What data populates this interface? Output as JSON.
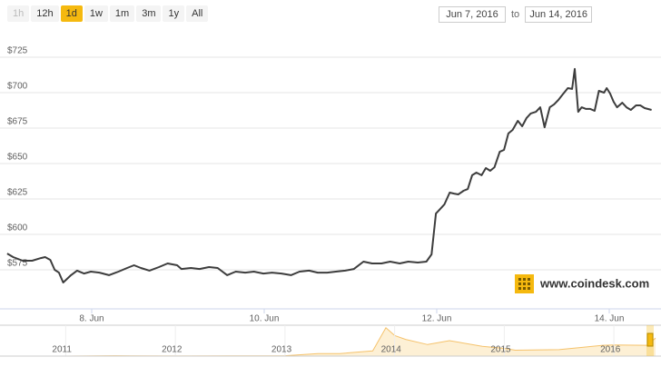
{
  "range_selector": {
    "buttons": [
      "1h",
      "12h",
      "1d",
      "1w",
      "1m",
      "3m",
      "1y",
      "All"
    ],
    "selected": 2,
    "disabled": [
      0
    ],
    "from": "Jun 7, 2016",
    "separator": "to",
    "to": "Jun 14, 2016"
  },
  "watermark": "www.coindesk.com",
  "chart_data": [
    {
      "type": "line",
      "color": "#3d3d3d",
      "x": [
        7.02,
        7.09,
        7.2,
        7.31,
        7.41,
        7.46,
        7.52,
        7.57,
        7.62,
        7.67,
        7.76,
        7.83,
        7.91,
        7.99,
        8.09,
        8.2,
        8.31,
        8.41,
        8.49,
        8.57,
        8.67,
        8.78,
        8.88,
        8.99,
        9.04,
        9.15,
        9.25,
        9.36,
        9.46,
        9.57,
        9.67,
        9.78,
        9.88,
        9.99,
        10.09,
        10.2,
        10.31,
        10.41,
        10.52,
        10.62,
        10.73,
        10.83,
        10.94,
        11.04,
        11.15,
        11.25,
        11.36,
        11.46,
        11.57,
        11.67,
        11.78,
        11.88,
        11.94,
        11.99,
        12.04,
        12.09,
        12.15,
        12.2,
        12.25,
        12.31,
        12.36,
        12.41,
        12.46,
        12.52,
        12.57,
        12.62,
        12.67,
        12.73,
        12.78,
        12.83,
        12.88,
        12.94,
        12.99,
        13.04,
        13.09,
        13.15,
        13.2,
        13.25,
        13.31,
        13.36,
        13.41,
        13.46,
        13.52,
        13.57,
        13.6,
        13.64,
        13.68,
        13.73,
        13.78,
        13.83,
        13.88,
        13.94,
        13.97,
        14.01,
        14.05,
        14.09,
        14.15,
        14.2,
        14.25,
        14.31,
        14.36,
        14.41,
        14.49
      ],
      "values": [
        586.5,
        584,
        581.4,
        581.4,
        583.3,
        584,
        582,
        575,
        573,
        566,
        571.2,
        574.4,
        572.4,
        573.7,
        573,
        571.2,
        573.7,
        576.3,
        578.2,
        576.3,
        574.4,
        576.9,
        579.5,
        578.2,
        575.6,
        576.3,
        575.6,
        576.9,
        576.3,
        571.2,
        573.7,
        573,
        573.7,
        572.4,
        573,
        572.4,
        571.2,
        573.7,
        574.4,
        573,
        573,
        573.7,
        574.4,
        575.6,
        580.8,
        579.5,
        579.5,
        580.8,
        579.5,
        580.8,
        580.1,
        580.8,
        585.9,
        614.7,
        617.9,
        621.2,
        629.5,
        628.8,
        628.2,
        630.8,
        632,
        641.7,
        643.6,
        641.7,
        646.8,
        644.9,
        647.4,
        658.3,
        659.6,
        671.2,
        673.7,
        680.1,
        676.3,
        682,
        685.3,
        686.5,
        689.7,
        675.6,
        689.7,
        691.7,
        694.9,
        698.7,
        703.2,
        702.6,
        716.7,
        686.5,
        689.7,
        688.5,
        688.5,
        687.2,
        701.3,
        700,
        703.2,
        699.4,
        693.6,
        689.7,
        692.9,
        689.7,
        687.8,
        691,
        691,
        689.1,
        687.8
      ],
      "xlim": [
        7,
        14.5
      ],
      "xticks": [
        {
          "value": 8,
          "label": "8. Jun"
        },
        {
          "value": 10,
          "label": "10. Jun"
        },
        {
          "value": 12,
          "label": "12. Jun"
        },
        {
          "value": 14,
          "label": "14. Jun"
        }
      ],
      "ylim": [
        550,
        750
      ],
      "yticks": [
        {
          "value": 575,
          "label": "$575"
        },
        {
          "value": 600,
          "label": "$600"
        },
        {
          "value": 625,
          "label": "$625"
        },
        {
          "value": 650,
          "label": "$650"
        },
        {
          "value": 675,
          "label": "$675"
        },
        {
          "value": 700,
          "label": "$700"
        },
        {
          "value": 725,
          "label": "$725"
        }
      ],
      "grid": true
    },
    {
      "type": "area",
      "color": "#f5c26b",
      "x": [
        2010.45,
        2011.0,
        2011.45,
        2011.6,
        2012.0,
        2012.5,
        2012.8,
        2013.0,
        2013.3,
        2013.5,
        2013.8,
        2013.92,
        2014.0,
        2014.1,
        2014.3,
        2014.5,
        2014.8,
        2015.0,
        2015.1,
        2015.5,
        2015.9,
        2016.0,
        2016.3,
        2016.38
      ],
      "values": [
        0.1,
        0.3,
        15,
        8,
        5,
        7,
        12,
        13,
        100,
        100,
        200,
        1100,
        800,
        650,
        450,
        600,
        380,
        300,
        230,
        250,
        420,
        430,
        420,
        700
      ],
      "xlim": [
        2010.45,
        2016.38
      ],
      "xticks": [
        2011,
        2012,
        2013,
        2014,
        2015,
        2016
      ],
      "ylim": [
        0,
        1200
      ]
    }
  ]
}
